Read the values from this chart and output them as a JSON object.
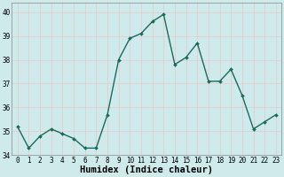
{
  "x": [
    0,
    1,
    2,
    3,
    4,
    5,
    6,
    7,
    8,
    9,
    10,
    11,
    12,
    13,
    14,
    15,
    16,
    17,
    18,
    19,
    20,
    21,
    22,
    23
  ],
  "y": [
    35.2,
    34.3,
    34.8,
    35.1,
    34.9,
    34.7,
    34.3,
    34.3,
    35.7,
    38.0,
    38.9,
    39.1,
    39.6,
    39.9,
    37.8,
    38.1,
    38.7,
    37.1,
    37.1,
    37.6,
    36.5,
    35.1,
    35.4,
    35.7
  ],
  "line_color": "#1a6b5a",
  "marker": "D",
  "marker_size": 2.0,
  "linewidth": 1.0,
  "bg_color": "#ceeaea",
  "grid_color": "#e8c8c8",
  "xlabel": "Humidex (Indice chaleur)",
  "ylim": [
    34.0,
    40.4
  ],
  "xlim": [
    -0.5,
    23.5
  ],
  "yticks": [
    34,
    35,
    36,
    37,
    38,
    39,
    40
  ],
  "xticks": [
    0,
    1,
    2,
    3,
    4,
    5,
    6,
    7,
    8,
    9,
    10,
    11,
    12,
    13,
    14,
    15,
    16,
    17,
    18,
    19,
    20,
    21,
    22,
    23
  ],
  "tick_fontsize": 5.5,
  "xlabel_fontsize": 7.5,
  "spine_color": "#888888"
}
